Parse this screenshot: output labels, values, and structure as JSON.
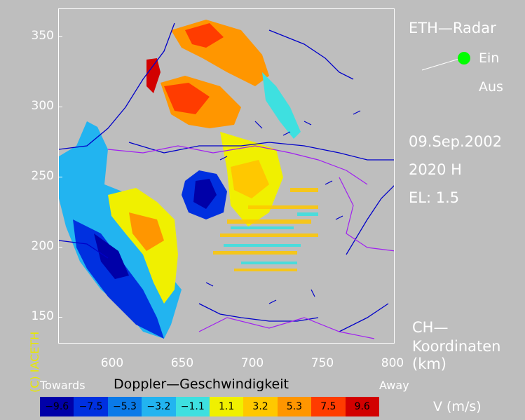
{
  "title": "ETH—Radar",
  "status_on": "Ein",
  "status_off": "Aus",
  "date": "09.Sep.2002",
  "time": "2020 H",
  "elevation": "EL:  1.5",
  "coords_line1": "CH—",
  "coords_line2": "Koordinaten",
  "coords_unit": "(km)",
  "credit": "(C) IACETH",
  "y_ticks": [
    "350",
    "300",
    "250",
    "200",
    "150"
  ],
  "x_ticks": [
    "600",
    "650",
    "700",
    "750",
    "800"
  ],
  "legend": {
    "towards": "Towards",
    "title": "Doppler—Geschwindigkeit",
    "away": "Away",
    "unit": "V  (m/s)",
    "bins": [
      {
        "label": "−9.6",
        "color": "#0000a8"
      },
      {
        "label": "−7.5",
        "color": "#0030e0"
      },
      {
        "label": "−5.3",
        "color": "#0a7ae8"
      },
      {
        "label": "−3.2",
        "color": "#22b4f0"
      },
      {
        "label": "−1.1",
        "color": "#3ee0e0"
      },
      {
        "label": "1.1",
        "color": "#f0f000"
      },
      {
        "label": "3.2",
        "color": "#ffc800"
      },
      {
        "label": "5.3",
        "color": "#ff9600"
      },
      {
        "label": "7.5",
        "color": "#ff3c00"
      },
      {
        "label": "9.6",
        "color": "#d20000"
      }
    ]
  }
}
